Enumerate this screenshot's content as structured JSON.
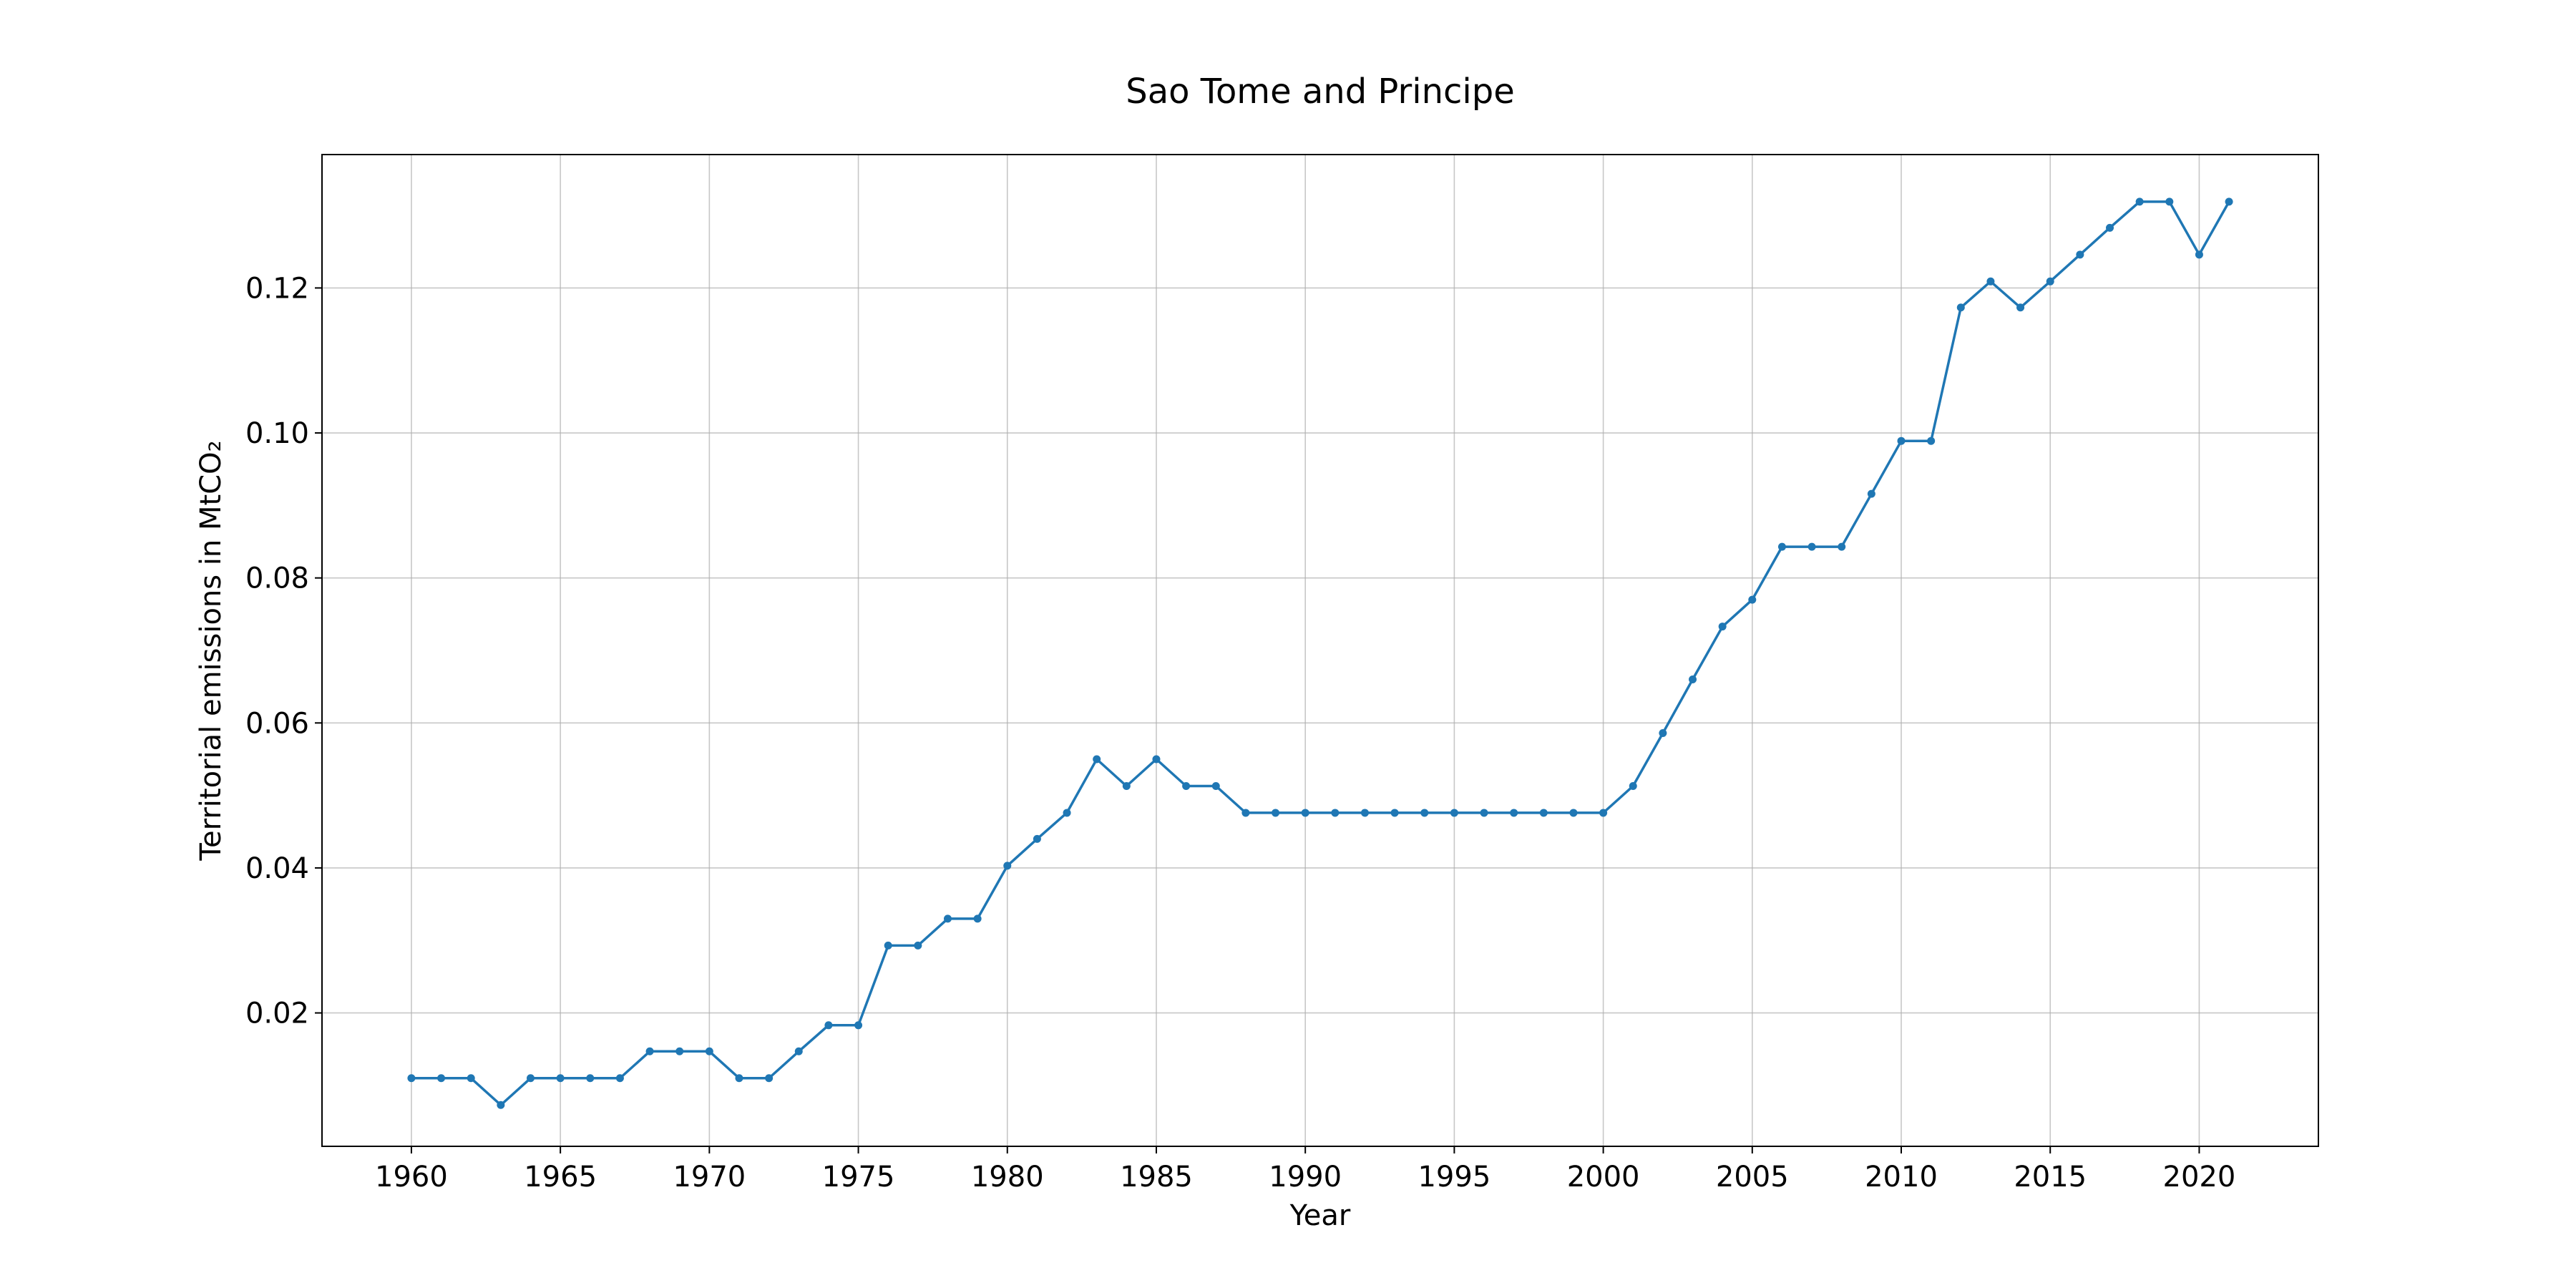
{
  "chart_data": {
    "type": "line",
    "title": "Sao Tome and Principe",
    "xlabel": "Year",
    "ylabel": "Territorial emissions in MtCO₂",
    "xlim": [
      1957,
      2024
    ],
    "ylim": [
      0.0016,
      0.1384
    ],
    "xticks": [
      1960,
      1965,
      1970,
      1975,
      1980,
      1985,
      1990,
      1995,
      2000,
      2005,
      2010,
      2015,
      2020
    ],
    "yticks": [
      0.02,
      0.04,
      0.06,
      0.08,
      0.1,
      0.12
    ],
    "ytick_labels": [
      "0.02",
      "0.04",
      "0.06",
      "0.08",
      "0.10",
      "0.12"
    ],
    "grid": true,
    "color": "#1f77b4",
    "series": [
      {
        "x": [
          1960,
          1961,
          1962,
          1963,
          1964,
          1965,
          1966,
          1967,
          1968,
          1969,
          1970,
          1971,
          1972,
          1973,
          1974,
          1975,
          1976,
          1977,
          1978,
          1979,
          1980,
          1981,
          1982,
          1983,
          1984,
          1985,
          1986,
          1987,
          1988,
          1989,
          1990,
          1991,
          1992,
          1993,
          1994,
          1995,
          1996,
          1997,
          1998,
          1999,
          2000,
          2001,
          2002,
          2003,
          2004,
          2005,
          2006,
          2007,
          2008,
          2009,
          2010,
          2011,
          2012,
          2013,
          2014,
          2015,
          2016,
          2017,
          2018,
          2019,
          2020,
          2021
        ],
        "values": [
          0.011,
          0.011,
          0.011,
          0.0073,
          0.011,
          0.011,
          0.011,
          0.011,
          0.0147,
          0.0147,
          0.0147,
          0.011,
          0.011,
          0.0147,
          0.0183,
          0.0183,
          0.0293,
          0.0293,
          0.033,
          0.033,
          0.0403,
          0.044,
          0.0476,
          0.055,
          0.0513,
          0.055,
          0.0513,
          0.0513,
          0.0476,
          0.0476,
          0.0476,
          0.0476,
          0.0476,
          0.0476,
          0.0476,
          0.0476,
          0.0476,
          0.0476,
          0.0476,
          0.0476,
          0.0476,
          0.0513,
          0.0586,
          0.066,
          0.0733,
          0.077,
          0.0843,
          0.0843,
          0.0843,
          0.0916,
          0.0989,
          0.0989,
          0.1173,
          0.1209,
          0.1173,
          0.1209,
          0.1246,
          0.1283,
          0.1319,
          0.1319,
          0.1246,
          0.1319
        ]
      }
    ]
  }
}
